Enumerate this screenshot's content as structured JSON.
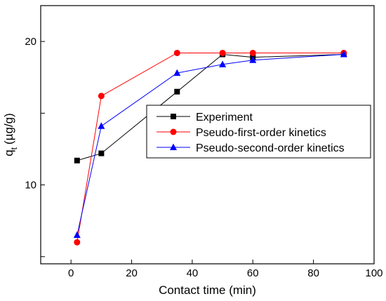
{
  "chart_data": {
    "type": "line",
    "title": "",
    "xlabel": "Contact time (min)",
    "ylabel_main": "q",
    "ylabel_sub": "t",
    "ylabel_unit": "(µg/g)",
    "xlim": [
      -10,
      100
    ],
    "ylim": [
      4.5,
      22.5
    ],
    "xticks": [
      0,
      20,
      40,
      60,
      80,
      100
    ],
    "xtick_labels": [
      "0",
      "20",
      "40",
      "60",
      "80",
      "100"
    ],
    "yticks": [
      5,
      10,
      15,
      20
    ],
    "ytick_labels": [
      "",
      "10",
      "",
      "20"
    ],
    "legend_position": "center-right",
    "grid": false,
    "series": [
      {
        "name": "Experiment",
        "color": "#000000",
        "marker": "square",
        "x": [
          2,
          10,
          35,
          50,
          60,
          90
        ],
        "y": [
          11.7,
          12.2,
          16.5,
          19.1,
          18.9,
          19.1
        ]
      },
      {
        "name": "Pseudo-first-order kinetics",
        "color": "#ff0000",
        "marker": "circle",
        "x": [
          2,
          10,
          35,
          50,
          60,
          90
        ],
        "y": [
          6.0,
          16.2,
          19.2,
          19.2,
          19.2,
          19.2
        ]
      },
      {
        "name": "Pseudo-second-order kinetics",
        "color": "#0000ff",
        "marker": "triangle",
        "x": [
          2,
          10,
          35,
          50,
          60,
          90
        ],
        "y": [
          6.5,
          14.1,
          17.8,
          18.4,
          18.7,
          19.1
        ]
      }
    ]
  }
}
